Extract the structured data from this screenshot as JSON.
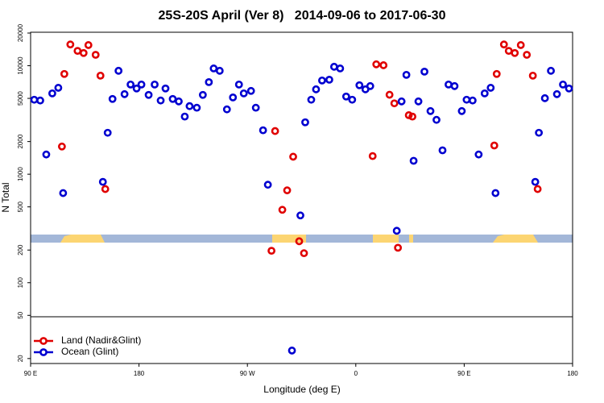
{
  "chart_data": {
    "type": "scatter",
    "title": "25S-20S April (Ver 8)   2014-09-06 to 2017-06-30",
    "xlabel": "Longitude (deg E)",
    "ylabel": "N Total",
    "xlim": [
      90,
      540
    ],
    "ylim": [
      18,
      20350
    ],
    "log_y": true,
    "legend": "lower left",
    "xticks": [
      {
        "value": 90,
        "label": "90 E"
      },
      180,
      {
        "value": 270,
        "label": "90 W"
      },
      {
        "value": 360,
        "label": "0"
      },
      {
        "value": 450,
        "label": "90 E"
      },
      {
        "value": 540,
        "label": "180"
      }
    ],
    "yticks": [
      20,
      50,
      100,
      200,
      500,
      1000,
      2000,
      5000,
      10000,
      20000
    ],
    "series": [
      {
        "name": "Land (Nadir&Glint)",
        "color": "#e00000",
        "x": [
          116,
          118,
          123,
          129,
          134,
          138,
          144,
          148,
          152,
          293,
          290,
          299,
          303,
          308,
          313,
          317,
          374,
          377,
          383,
          388,
          392,
          395,
          404,
          407,
          475,
          477,
          483,
          487,
          492,
          497,
          502,
          507,
          511
        ],
        "values": [
          1800,
          8400,
          15700,
          13700,
          13100,
          15500,
          12600,
          8100,
          730,
          2500,
          197,
          470,
          710,
          1450,
          241,
          187,
          1470,
          10300,
          10100,
          5400,
          4500,
          210,
          3500,
          3400,
          1840,
          8400,
          15700,
          13700,
          13100,
          15500,
          12600,
          8100,
          730
        ]
      },
      {
        "name": "Ocean (Glint)",
        "color": "#0000d0",
        "x": [
          93,
          98,
          103,
          108,
          113,
          117,
          150,
          154,
          158,
          163,
          168,
          173,
          178,
          182,
          188,
          193,
          198,
          202,
          208,
          213,
          218,
          222,
          228,
          233,
          238,
          242,
          247,
          253,
          258,
          263,
          267,
          273,
          277,
          283,
          287,
          307,
          314,
          318,
          323,
          327,
          332,
          338,
          342,
          347,
          352,
          357,
          363,
          368,
          372,
          394,
          398,
          402,
          408,
          412,
          417,
          422,
          427,
          432,
          437,
          442,
          448,
          452,
          457,
          462,
          467,
          472,
          476,
          509,
          512,
          517,
          522,
          527,
          532,
          537
        ],
        "values": [
          4860,
          4780,
          1520,
          5560,
          6260,
          670,
          850,
          2410,
          4940,
          8980,
          5470,
          6710,
          6170,
          6710,
          5380,
          6710,
          4780,
          6170,
          4940,
          4690,
          3400,
          4240,
          4100,
          5380,
          7060,
          9440,
          8980,
          3960,
          5100,
          6710,
          5560,
          5860,
          4100,
          2540,
          800,
          23.7,
          417,
          3010,
          4860,
          6060,
          7310,
          7430,
          9780,
          9440,
          5200,
          4860,
          6610,
          6060,
          6490,
          301,
          4690,
          8240,
          1330,
          4690,
          8820,
          3820,
          3170,
          1660,
          6710,
          6490,
          3820,
          4860,
          4780,
          1520,
          5560,
          6260,
          670,
          850,
          2410,
          5020,
          8980,
          5470,
          6710,
          6170
        ]
      }
    ]
  }
}
